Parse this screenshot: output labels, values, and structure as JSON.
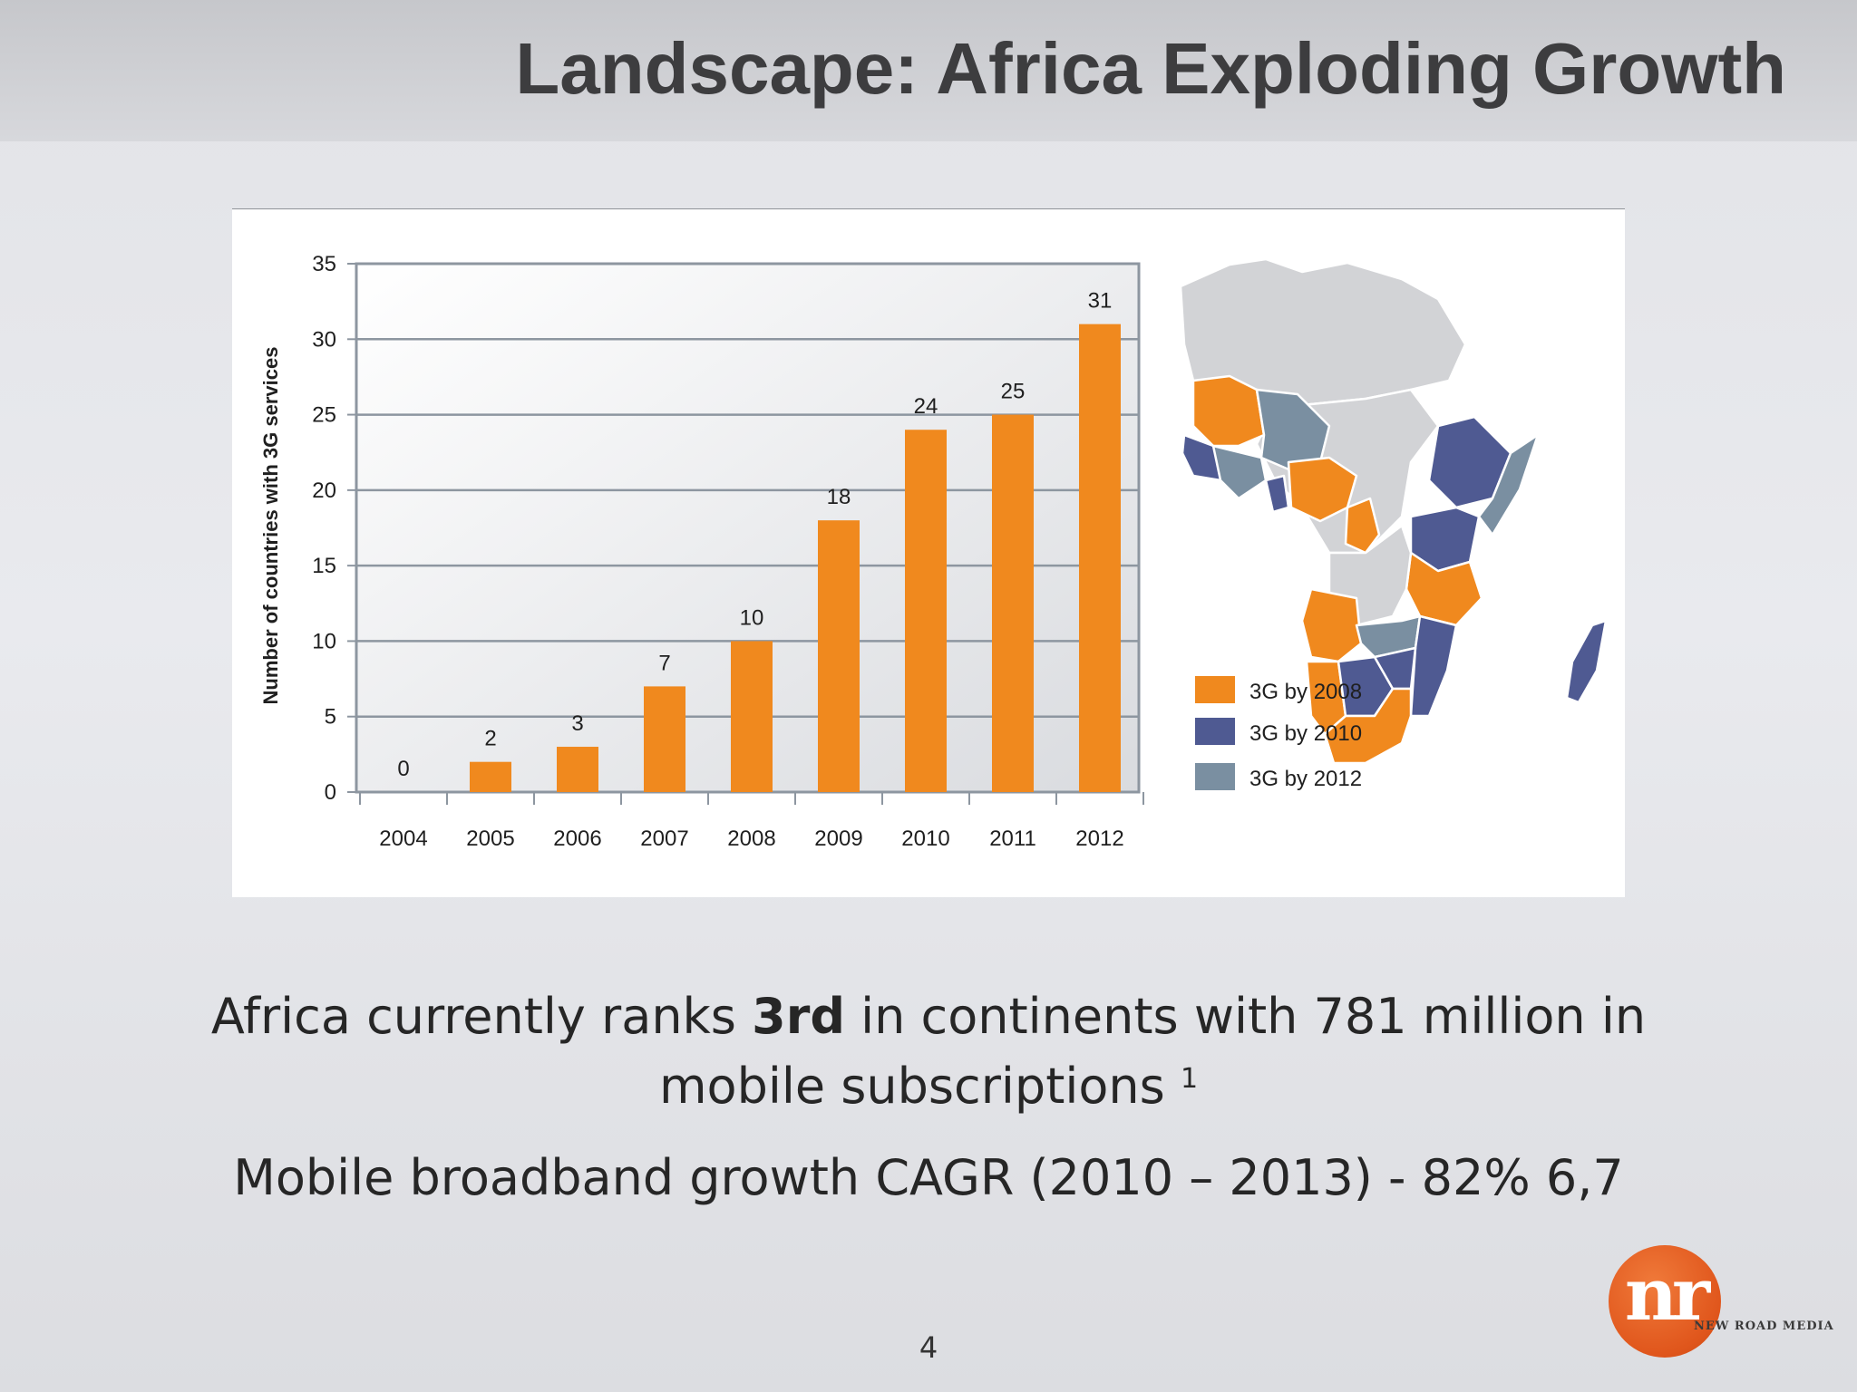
{
  "slide": {
    "title": "Landscape: Africa Exploding Growth",
    "caption_line1_before": "Africa currently ranks ",
    "caption_line1_bold": "3rd",
    "caption_line1_after": " in continents with 781 million in",
    "caption_line2": "mobile subscriptions ",
    "caption_line2_sup": "1",
    "caption_line3": "Mobile broadband growth CAGR (2010 – 2013) - 82% 6,7",
    "page_number": "4",
    "logo": {
      "mark": "nr",
      "text": "NEW ROAD MEDIA",
      "color": "#e0561c"
    }
  },
  "chart_data": {
    "type": "bar",
    "categories": [
      "2004",
      "2005",
      "2006",
      "2007",
      "2008",
      "2009",
      "2010",
      "2011",
      "2012"
    ],
    "values": [
      0,
      2,
      3,
      7,
      10,
      18,
      24,
      25,
      31
    ],
    "data_labels": [
      "0",
      "2",
      "3",
      "7",
      "10",
      "18",
      "24",
      "25",
      "31"
    ],
    "title": "",
    "xlabel": "",
    "ylabel": "Number of countries with 3G services",
    "ylim": [
      0,
      35
    ],
    "yticks": [
      0,
      5,
      10,
      15,
      20,
      25,
      30,
      35
    ],
    "grid": true,
    "bar_color": "#f0891e",
    "plot_background": "gradient white to light grey"
  },
  "map": {
    "legend": [
      {
        "label": "3G by 2008",
        "color": "#f0891e"
      },
      {
        "label": "3G by 2010",
        "color": "#4f5a92"
      },
      {
        "label": "3G by 2012",
        "color": "#7a8fa1"
      }
    ],
    "base_color": "#d2d3d6"
  }
}
